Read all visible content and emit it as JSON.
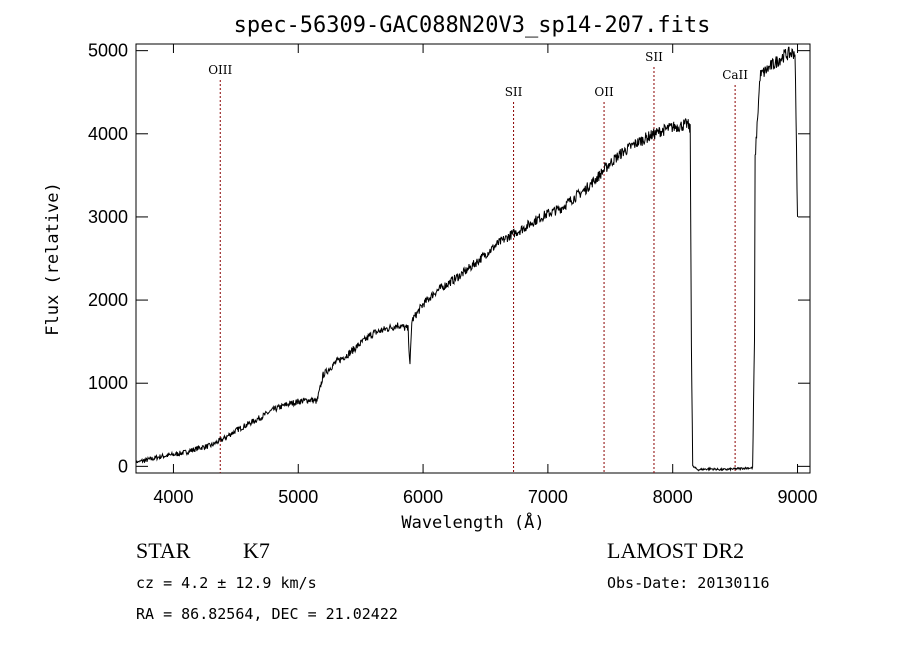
{
  "chart_data": {
    "type": "line",
    "title": "spec-56309-GAC088N20V3_sp14-207.fits",
    "xlabel": "Wavelength (Å)",
    "ylabel": "Flux (relative)",
    "xlim": [
      3700,
      9100
    ],
    "ylim": [
      -80,
      5080
    ],
    "xticks": [
      4000,
      5000,
      6000,
      7000,
      8000,
      9000
    ],
    "yticks": [
      0,
      1000,
      2000,
      3000,
      4000,
      5000
    ],
    "grid": false,
    "series": [
      {
        "x": [
          3700,
          3800,
          3900,
          4000,
          4100,
          4200,
          4300,
          4400,
          4500,
          4600,
          4700,
          4800,
          4900,
          5000,
          5100,
          5150,
          5200,
          5300,
          5400,
          5500,
          5600,
          5700,
          5800,
          5880,
          5895,
          5910,
          6000,
          6100,
          6200,
          6300,
          6400,
          6500,
          6600,
          6700,
          6800,
          6900,
          7000,
          7100,
          7200,
          7300,
          7400,
          7500,
          7600,
          7700,
          7800,
          7900,
          8000,
          8080,
          8120,
          8140,
          8150,
          8160,
          8200,
          8300,
          8400,
          8500,
          8600,
          8640,
          8655,
          8660,
          8700,
          8800,
          8900,
          8980,
          9000
        ],
        "values": [
          50,
          80,
          120,
          140,
          170,
          220,
          250,
          330,
          430,
          510,
          590,
          680,
          740,
          780,
          800,
          780,
          1100,
          1250,
          1350,
          1480,
          1600,
          1650,
          1700,
          1650,
          1200,
          1750,
          1950,
          2100,
          2200,
          2300,
          2420,
          2550,
          2680,
          2780,
          2860,
          2960,
          3040,
          3100,
          3220,
          3330,
          3480,
          3650,
          3780,
          3880,
          3960,
          4030,
          4080,
          4100,
          4120,
          4050,
          1500,
          0,
          -40,
          -30,
          -40,
          -30,
          -20,
          -20,
          1500,
          3700,
          4700,
          4830,
          4950,
          4980,
          3000
        ]
      }
    ],
    "lines": [
      {
        "label": "OIII",
        "x": 4375
      },
      {
        "label": "SII",
        "x": 6725
      },
      {
        "label": "OII",
        "x": 7450
      },
      {
        "label": "SII",
        "x": 7850
      },
      {
        "label": "CaII",
        "x": 8500
      }
    ],
    "colors": {
      "line": "#000000",
      "marker": "#8b0000"
    }
  },
  "info": {
    "object_class": "STAR",
    "subclass": "K7",
    "survey": "LAMOST DR2",
    "redshift": "cz =  4.2 ± 12.9 km/s",
    "obs_date": "Obs-Date: 20130116",
    "coords": "RA =  86.82564, DEC =  21.02422"
  }
}
